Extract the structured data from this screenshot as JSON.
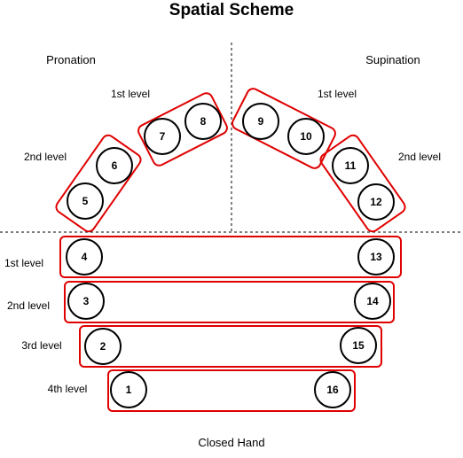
{
  "title": "Spatial Scheme",
  "headers": {
    "left": "Pronation",
    "right": "Supination"
  },
  "footer": "Closed Hand",
  "upper_labels": {
    "pronation_1st": "1st level",
    "pronation_2nd": "2nd level",
    "supination_1st": "1st level",
    "supination_2nd": "2nd level"
  },
  "row_labels": [
    "1st level",
    "2nd level",
    "3rd level",
    "4th level"
  ],
  "nodes": [
    "1",
    "2",
    "3",
    "4",
    "5",
    "6",
    "7",
    "8",
    "9",
    "10",
    "11",
    "12",
    "13",
    "14",
    "15",
    "16"
  ],
  "colors": {
    "group_border": "#e00000",
    "node_border": "#000000",
    "guide_line": "#000000"
  }
}
